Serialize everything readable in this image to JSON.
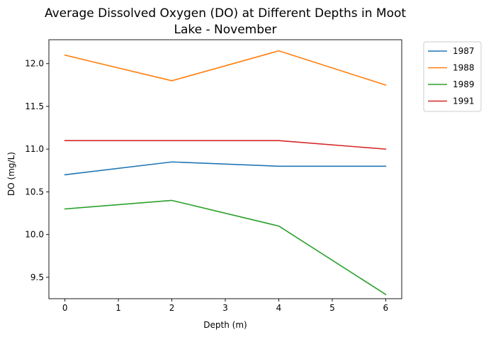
{
  "chart_data": {
    "type": "line",
    "title_line1": "Average Dissolved Oxygen (DO) at Different Depths in Moot",
    "title_line2": "Lake - November",
    "xlabel": "Depth (m)",
    "ylabel": "DO (mg/L)",
    "x": [
      0,
      2,
      4,
      6
    ],
    "xlim": [
      -0.3,
      6.3
    ],
    "ylim": [
      9.25,
      12.28
    ],
    "xticks": [
      "0",
      "1",
      "2",
      "3",
      "4",
      "5",
      "6"
    ],
    "yticks": [
      "9.5",
      "10.0",
      "10.5",
      "11.0",
      "11.5",
      "12.0"
    ],
    "grid": false,
    "legend_position": "outside-top-right",
    "series": [
      {
        "name": "1987",
        "color": "#1f77b4",
        "values": [
          10.7,
          10.85,
          10.8,
          10.8
        ]
      },
      {
        "name": "1988",
        "color": "#ff7f0e",
        "values": [
          12.1,
          11.8,
          12.15,
          11.75
        ]
      },
      {
        "name": "1989",
        "color": "#2ca02c",
        "values": [
          10.3,
          10.4,
          10.1,
          9.3
        ]
      },
      {
        "name": "1991",
        "color": "#d62728",
        "values": [
          11.1,
          11.1,
          11.1,
          11.0
        ]
      }
    ]
  }
}
